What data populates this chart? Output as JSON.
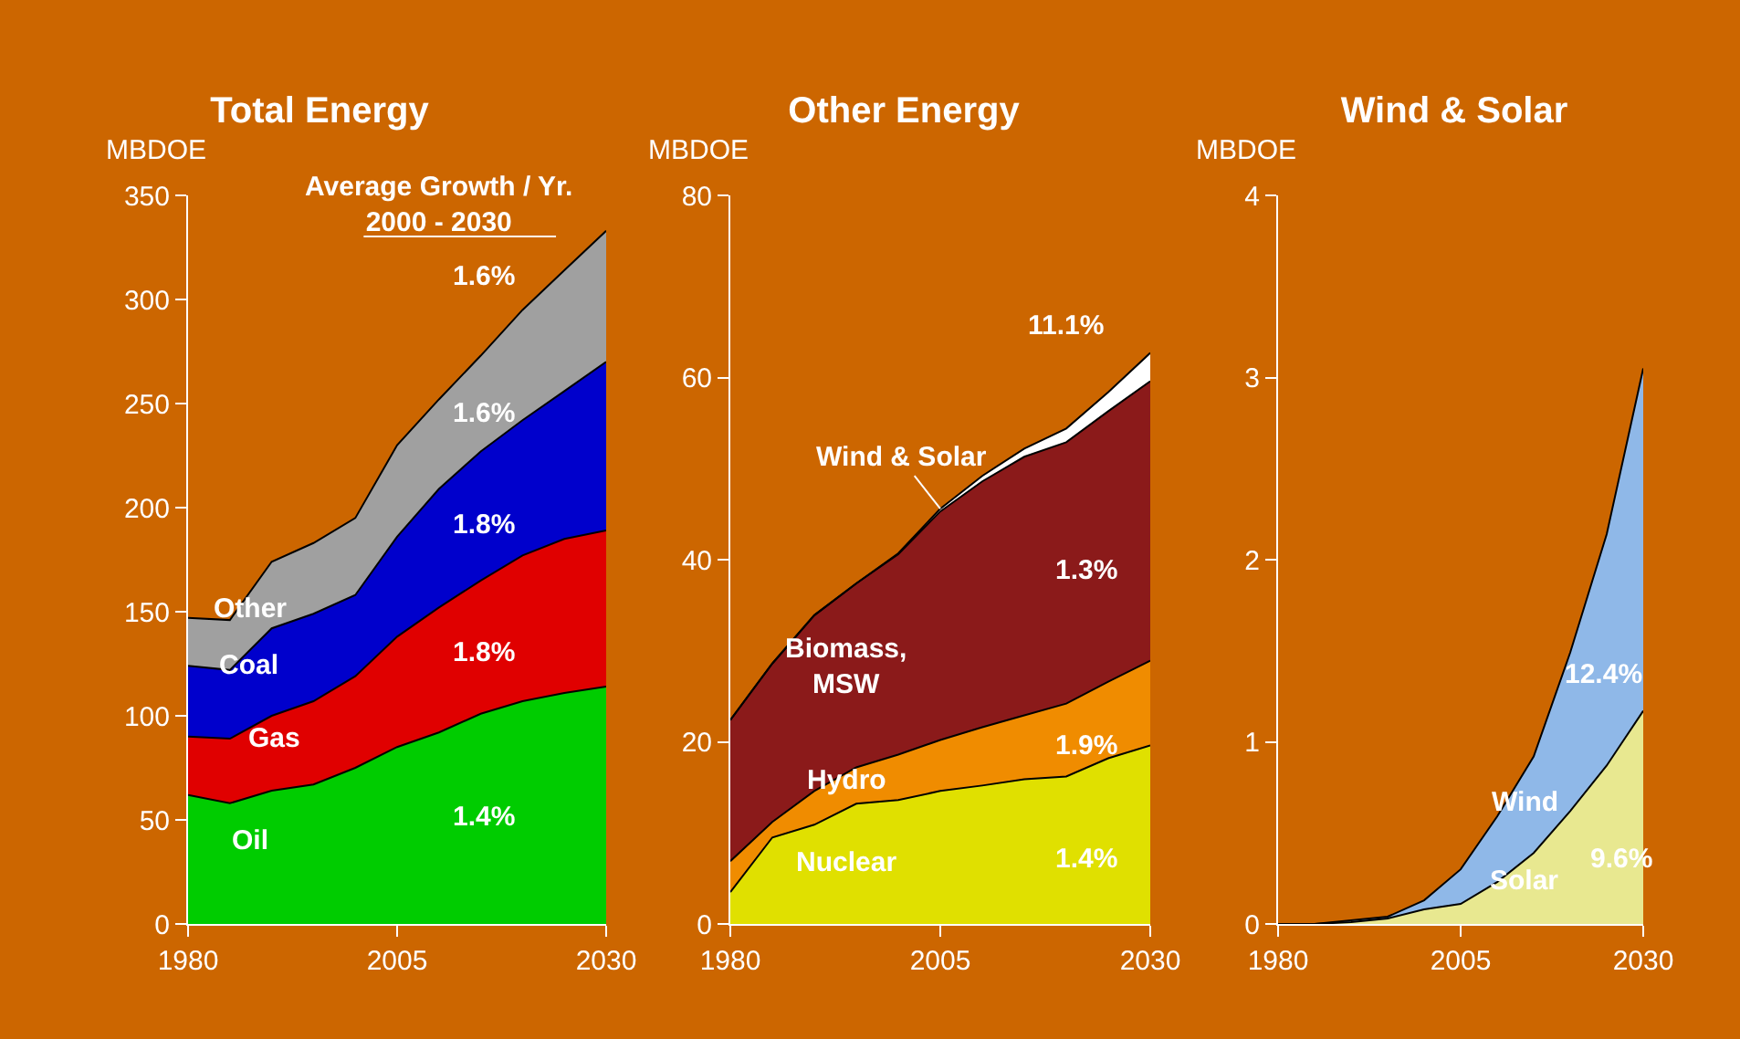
{
  "chart_data": [
    {
      "type": "area",
      "stacked": true,
      "title": "Total Energy",
      "ylabel": "MBDOE",
      "x": [
        1980,
        1985,
        1990,
        1995,
        2000,
        2005,
        2010,
        2015,
        2020,
        2025,
        2030
      ],
      "xlim": [
        1980,
        2030
      ],
      "xticks": [
        1980,
        2005,
        2030
      ],
      "ylim": [
        0,
        350
      ],
      "yticks": [
        0,
        50,
        100,
        150,
        200,
        250,
        300,
        350
      ],
      "grid": false,
      "legend": false,
      "series": [
        {
          "name": "Oil",
          "color": "#00cc00",
          "values": [
            62,
            58,
            64,
            67,
            75,
            85,
            92,
            101,
            107,
            111,
            114
          ]
        },
        {
          "name": "Gas",
          "color": "#e00000",
          "values": [
            28,
            31,
            36,
            40,
            44,
            53,
            60,
            64,
            70,
            74,
            75
          ]
        },
        {
          "name": "Coal",
          "color": "#0000cc",
          "values": [
            34,
            33,
            42,
            42,
            39,
            48,
            57,
            62,
            65,
            71,
            81
          ]
        },
        {
          "name": "Other",
          "color": "#a0a0a0",
          "values": [
            23,
            24,
            32,
            34,
            37,
            44,
            43,
            46,
            53,
            58,
            63
          ]
        }
      ],
      "annotations": [
        "Average Growth / Yr.\n2000 - 2030",
        "1.6%",
        "1.6%",
        "1.8%",
        "1.8%",
        "1.4%"
      ]
    },
    {
      "type": "area",
      "stacked": true,
      "title": "Other Energy",
      "ylabel": "MBDOE",
      "x": [
        1980,
        1985,
        1990,
        1995,
        2000,
        2005,
        2010,
        2015,
        2020,
        2025,
        2030
      ],
      "xlim": [
        1980,
        2030
      ],
      "xticks": [
        1980,
        2005,
        2030
      ],
      "ylim": [
        0,
        80
      ],
      "yticks": [
        0,
        20,
        40,
        60,
        80
      ],
      "grid": false,
      "legend": false,
      "series": [
        {
          "name": "Nuclear",
          "color": "#e0e000",
          "values": [
            3.5,
            9.5,
            10.9,
            13.2,
            13.6,
            14.6,
            15.2,
            15.9,
            16.2,
            18.2,
            19.6
          ]
        },
        {
          "name": "Hydro",
          "color": "#f08c00",
          "values": [
            3.4,
            1.7,
            3.7,
            4.0,
            5.0,
            5.6,
            6.4,
            7.0,
            8.0,
            8.4,
            9.3
          ]
        },
        {
          "name": "Biomass, MSW",
          "color": "#8b1a1a",
          "values": [
            15.5,
            17.4,
            19.3,
            20.2,
            22.0,
            25.1,
            27.0,
            28.4,
            28.7,
            29.7,
            30.7
          ]
        },
        {
          "name": "Wind & Solar",
          "color": "#ffffff",
          "values": [
            0,
            0,
            0,
            0,
            0.1,
            0.3,
            0.6,
            0.9,
            1.5,
            2.1,
            3.1
          ]
        }
      ],
      "annotations": [
        "11.1%",
        "1.3%",
        "1.9%",
        "1.4%"
      ]
    },
    {
      "type": "area",
      "stacked": true,
      "title": "Wind & Solar",
      "ylabel": "MBDOE",
      "x": [
        1980,
        1985,
        1990,
        1995,
        2000,
        2005,
        2010,
        2015,
        2020,
        2025,
        2030
      ],
      "xlim": [
        1980,
        2030
      ],
      "xticks": [
        1980,
        2005,
        2030
      ],
      "ylim": [
        0,
        4
      ],
      "yticks": [
        0,
        1,
        2,
        3,
        4
      ],
      "grid": false,
      "legend": false,
      "series": [
        {
          "name": "Solar",
          "color": "#e8e890",
          "values": [
            0,
            0,
            0.01,
            0.03,
            0.08,
            0.11,
            0.23,
            0.39,
            0.62,
            0.87,
            1.17
          ]
        },
        {
          "name": "Wind",
          "color": "#8fb8e8",
          "values": [
            0,
            0,
            0.01,
            0.01,
            0.05,
            0.19,
            0.36,
            0.53,
            0.87,
            1.27,
            1.88
          ]
        }
      ],
      "annotations": [
        "12.4%",
        "9.6%"
      ]
    }
  ]
}
